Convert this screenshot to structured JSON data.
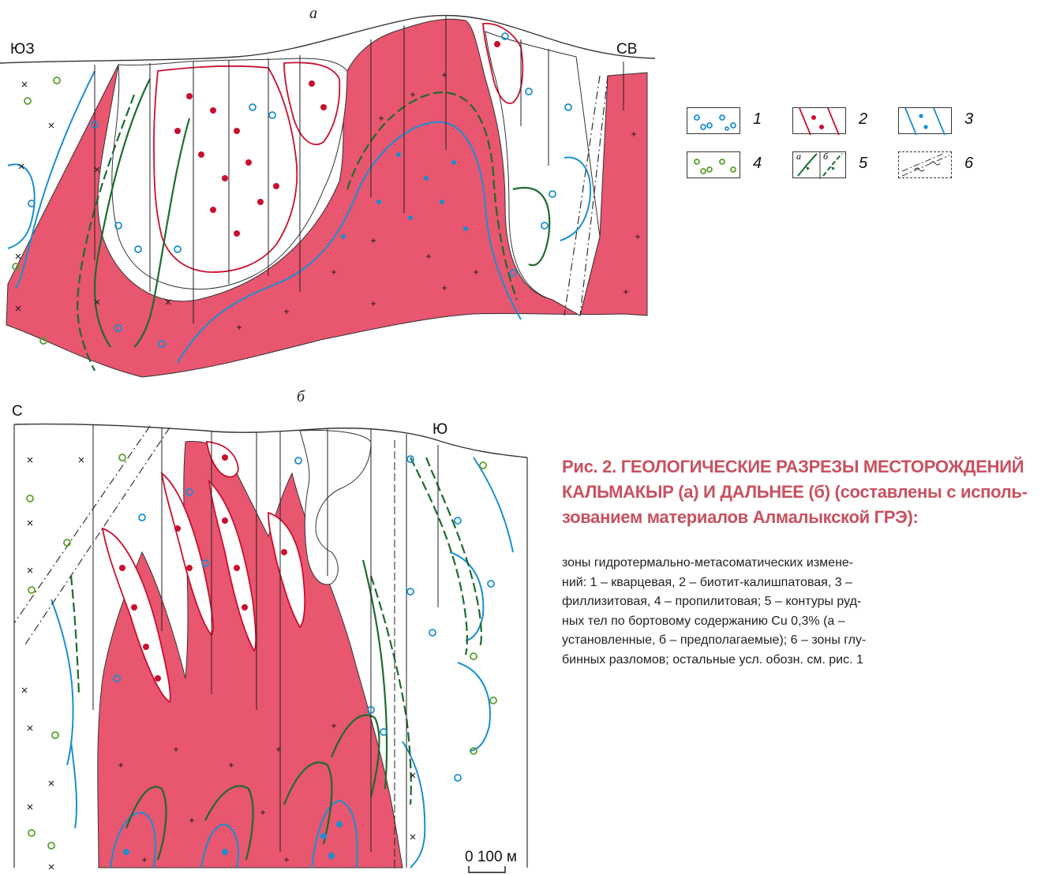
{
  "section_a": {
    "panel_label": "а",
    "left_label": "ЮЗ",
    "right_label": "СВ"
  },
  "section_b": {
    "panel_label": "б",
    "left_label": "С",
    "right_label": "Ю"
  },
  "legend": {
    "items": [
      {
        "number": "1",
        "icon": "quartz-zone-pattern",
        "color": "#1a8fd0"
      },
      {
        "number": "2",
        "icon": "biotite-kfeldspar-zone-pattern",
        "color": "#c8102e"
      },
      {
        "number": "3",
        "icon": "phyllic-zone-pattern",
        "color": "#1a8fd0"
      },
      {
        "number": "4",
        "icon": "propylitic-zone-pattern",
        "color": "#5aa02c"
      },
      {
        "number": "5",
        "icon": "ore-body-contour-pattern",
        "color": "#1e6b2e",
        "sub_a": "а",
        "sub_b": "б"
      },
      {
        "number": "6",
        "icon": "deep-fault-zone-pattern",
        "color": "#333333"
      }
    ]
  },
  "caption": {
    "title_lines": [
      "Рис. 2. ГЕОЛОГИЧЕСКИЕ РАЗРЕЗЫ МЕСТОРОЖДЕНИЙ",
      "КАЛЬМАКЫР (а) И ДАЛЬНЕЕ (б) (составлены с исполь-",
      "зованием материалов Алмалыкской ГРЭ):"
    ],
    "body_lines": [
      "зоны гидротермально-метасоматических измене-",
      "ний: 1 – кварцевая, 2 – биотит-калишпатовая, 3 –",
      "филлизитовая, 4 – пропилитовая; 5 – контуры руд-",
      "ных тел по бортовому содержанию Cu 0,3% (а –",
      "установленные, б – предполагаемые); 6 – зоны глу-",
      "бинных разломов; остальные усл. обозн. см. рис. 1"
    ]
  },
  "scale_bar": {
    "label": "0  100 м"
  },
  "colors": {
    "intrusion_fill": "#e8566f",
    "quartz_blue": "#1a8fd0",
    "biotite_red": "#c8102e",
    "propylite_green": "#5aa02c",
    "orebody_green": "#1e6b2e",
    "caption_title": "#c8515f"
  }
}
